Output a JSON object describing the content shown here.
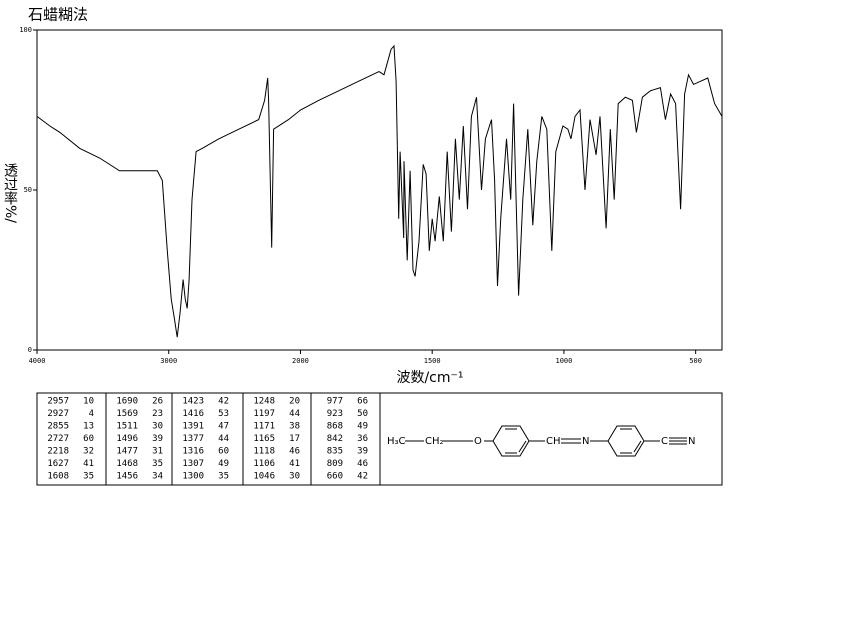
{
  "chart_data": {
    "type": "line",
    "title": "石蜡糊法",
    "xlabel": "波数/cm⁻¹",
    "ylabel": "透过率%/",
    "x": [
      4000,
      3902,
      3826,
      3675,
      3525,
      3374,
      3223,
      3087,
      3049,
      3011,
      2981,
      2958,
      2936,
      2913,
      2891,
      2875,
      2860,
      2845,
      2823,
      2792,
      2747,
      2619,
      2468,
      2317,
      2272,
      2249,
      2242,
      2218,
      2204,
      2091,
      2000,
      1931,
      1855,
      1779,
      1702,
      1683,
      1656,
      1645,
      1637,
      1627,
      1622,
      1608,
      1607,
      1595,
      1584,
      1573,
      1565,
      1550,
      1534,
      1523,
      1511,
      1500,
      1489,
      1473,
      1458,
      1443,
      1427,
      1412,
      1397,
      1382,
      1366,
      1351,
      1332,
      1313,
      1298,
      1275,
      1263,
      1252,
      1240,
      1218,
      1202,
      1191,
      1172,
      1156,
      1137,
      1118,
      1103,
      1084,
      1065,
      1046,
      1031,
      1004,
      985,
      973,
      958,
      939,
      920,
      901,
      878,
      863,
      840,
      824,
      809,
      794,
      767,
      740,
      725,
      702,
      672,
      634,
      615,
      595,
      576,
      557,
      542,
      527,
      508,
      481,
      454,
      428,
      400
    ],
    "values": [
      73,
      70,
      68,
      63,
      60,
      56,
      56,
      56,
      53,
      31,
      16,
      10,
      4,
      12,
      22,
      16,
      13,
      22,
      47,
      62,
      63,
      66,
      69,
      72,
      78,
      85,
      78,
      32,
      69,
      72,
      75,
      78,
      81,
      84,
      87,
      86,
      94,
      95,
      84,
      41,
      62,
      35,
      59,
      28,
      56,
      25,
      23,
      34,
      58,
      55,
      31,
      41,
      34,
      48,
      34,
      62,
      37,
      66,
      47,
      70,
      44,
      73,
      79,
      50,
      66,
      72,
      53,
      20,
      41,
      66,
      47,
      77,
      17,
      47,
      69,
      39,
      59,
      73,
      69,
      31,
      62,
      70,
      69,
      66,
      73,
      75,
      50,
      72,
      61,
      73,
      38,
      69,
      47,
      77,
      79,
      78,
      68,
      79,
      81,
      82,
      72,
      80,
      77,
      44,
      80,
      86,
      83,
      84,
      85,
      77,
      73
    ],
    "color": "#000000",
    "xlim": [
      4000,
      400
    ],
    "x_scale_change": 2000,
    "xticks": [
      4000,
      3000,
      2000,
      1500,
      1000,
      500
    ],
    "ylim": [
      0,
      100
    ],
    "yticks": [
      0,
      50,
      100
    ]
  },
  "peak_table": [
    [
      [
        2957,
        10
      ],
      [
        2927,
        4
      ],
      [
        2855,
        13
      ],
      [
        2727,
        60
      ],
      [
        2218,
        32
      ],
      [
        1627,
        41
      ],
      [
        1608,
        35
      ]
    ],
    [
      [
        1690,
        26
      ],
      [
        1569,
        23
      ],
      [
        1511,
        30
      ],
      [
        1496,
        39
      ],
      [
        1477,
        31
      ],
      [
        1468,
        35
      ],
      [
        1456,
        34
      ]
    ],
    [
      [
        1423,
        42
      ],
      [
        1416,
        53
      ],
      [
        1391,
        47
      ],
      [
        1377,
        44
      ],
      [
        1316,
        60
      ],
      [
        1307,
        49
      ],
      [
        1300,
        35
      ]
    ],
    [
      [
        1248,
        20
      ],
      [
        1197,
        44
      ],
      [
        1171,
        38
      ],
      [
        1165,
        17
      ],
      [
        1118,
        46
      ],
      [
        1106,
        41
      ],
      [
        1046,
        30
      ]
    ],
    [
      [
        977,
        66
      ],
      [
        923,
        50
      ],
      [
        868,
        49
      ],
      [
        842,
        36
      ],
      [
        835,
        39
      ],
      [
        809,
        46
      ],
      [
        660,
        42
      ]
    ]
  ],
  "structure": {
    "labels": [
      "H₃C",
      "CH₂",
      "O",
      "CH",
      "N",
      "C",
      "N"
    ]
  }
}
